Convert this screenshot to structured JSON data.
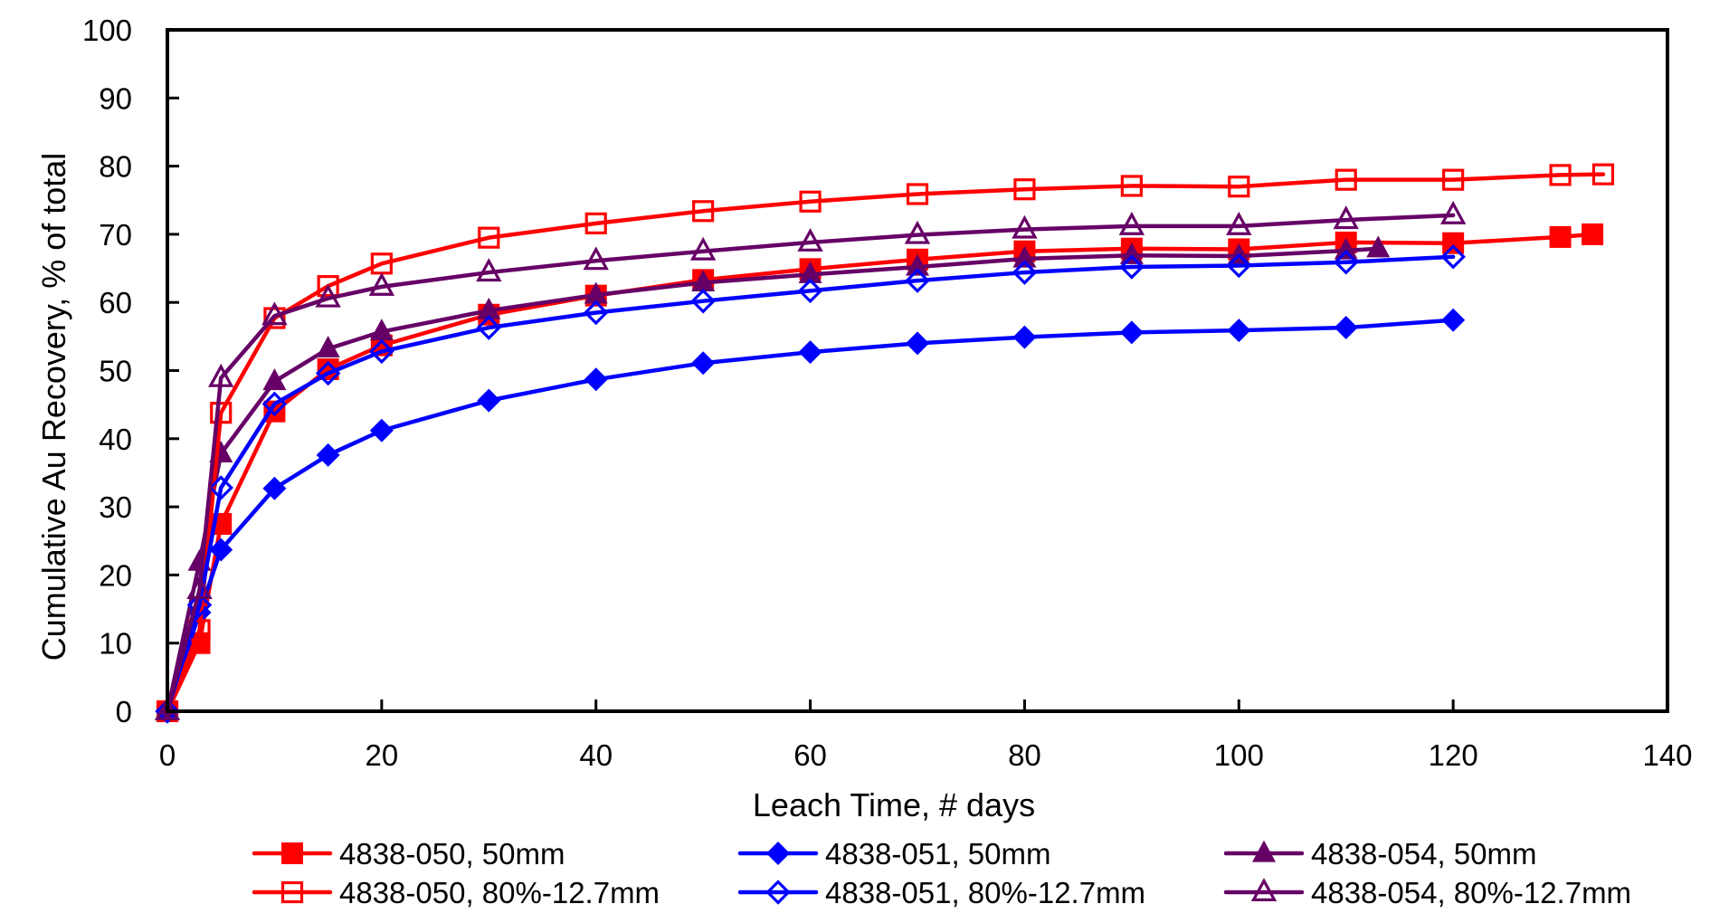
{
  "chart_data": {
    "type": "line",
    "title": "",
    "xlabel": "Leach Time, # days",
    "ylabel": "Cumulative Au Recovery, % of total",
    "xlim": [
      0,
      140
    ],
    "ylim": [
      0,
      100
    ],
    "x_ticks": [
      0,
      20,
      40,
      60,
      80,
      100,
      120,
      140
    ],
    "y_ticks": [
      0,
      10,
      20,
      30,
      40,
      50,
      60,
      70,
      80,
      90,
      100
    ],
    "grid": false,
    "legend_position": "bottom",
    "series": [
      {
        "name": "4838-050, 50mm",
        "color": "#ff0000",
        "marker": "square",
        "filled": true,
        "points": [
          [
            0,
            0
          ],
          [
            3,
            10
          ],
          [
            5,
            27.5
          ],
          [
            10,
            44
          ],
          [
            15,
            50.2
          ],
          [
            20,
            53.7
          ],
          [
            30,
            58.2
          ],
          [
            40,
            61
          ],
          [
            50,
            63.3
          ],
          [
            60,
            64.9
          ],
          [
            70,
            66.3
          ],
          [
            80,
            67.5
          ],
          [
            90,
            67.9
          ],
          [
            100,
            67.8
          ],
          [
            110,
            68.8
          ],
          [
            120,
            68.7
          ],
          [
            130,
            69.6
          ],
          [
            133,
            70
          ]
        ]
      },
      {
        "name": "4838-051, 50mm",
        "color": "#0000ff",
        "marker": "diamond",
        "filled": true,
        "points": [
          [
            0,
            0
          ],
          [
            3,
            14.5
          ],
          [
            5,
            23.7
          ],
          [
            10,
            32.7
          ],
          [
            15,
            37.6
          ],
          [
            20,
            41.2
          ],
          [
            30,
            45.6
          ],
          [
            40,
            48.7
          ],
          [
            50,
            51.1
          ],
          [
            60,
            52.7
          ],
          [
            70,
            54
          ],
          [
            80,
            54.9
          ],
          [
            90,
            55.6
          ],
          [
            100,
            55.9
          ],
          [
            110,
            56.3
          ],
          [
            120,
            57.4
          ]
        ]
      },
      {
        "name": "4838-054, 50mm",
        "color": "#660066",
        "marker": "triangle",
        "filled": true,
        "points": [
          [
            0,
            0
          ],
          [
            3,
            21.9
          ],
          [
            5,
            37.8
          ],
          [
            10,
            48.4
          ],
          [
            15,
            53.2
          ],
          [
            20,
            55.7
          ],
          [
            30,
            58.8
          ],
          [
            40,
            61.1
          ],
          [
            50,
            62.9
          ],
          [
            60,
            64.1
          ],
          [
            70,
            65.2
          ],
          [
            80,
            66.4
          ],
          [
            90,
            66.9
          ],
          [
            100,
            66.8
          ],
          [
            110,
            67.6
          ],
          [
            113,
            67.9
          ]
        ]
      },
      {
        "name": "4838-050, 80%-12.7mm",
        "color": "#ff0000",
        "marker": "square",
        "filled": false,
        "points": [
          [
            0,
            0
          ],
          [
            3,
            11.9
          ],
          [
            5,
            43.8
          ],
          [
            10,
            57.7
          ],
          [
            15,
            62.4
          ],
          [
            20,
            65.7
          ],
          [
            30,
            69.5
          ],
          [
            40,
            71.6
          ],
          [
            50,
            73.4
          ],
          [
            60,
            74.8
          ],
          [
            70,
            75.9
          ],
          [
            80,
            76.6
          ],
          [
            90,
            77.1
          ],
          [
            100,
            77
          ],
          [
            110,
            78
          ],
          [
            120,
            78
          ],
          [
            130,
            78.7
          ],
          [
            134,
            78.8
          ]
        ]
      },
      {
        "name": "4838-051, 80%-12.7mm",
        "color": "#0000ff",
        "marker": "diamond",
        "filled": false,
        "points": [
          [
            0,
            0
          ],
          [
            3,
            15.6
          ],
          [
            5,
            32.8
          ],
          [
            10,
            45.1
          ],
          [
            15,
            49.6
          ],
          [
            20,
            52.8
          ],
          [
            30,
            56.3
          ],
          [
            40,
            58.5
          ],
          [
            50,
            60.2
          ],
          [
            60,
            61.7
          ],
          [
            70,
            63.2
          ],
          [
            80,
            64.4
          ],
          [
            90,
            65.2
          ],
          [
            100,
            65.4
          ],
          [
            110,
            65.9
          ],
          [
            120,
            66.7
          ]
        ]
      },
      {
        "name": "4838-054, 80%-12.7mm",
        "color": "#660066",
        "marker": "triangle",
        "filled": false,
        "points": [
          [
            0,
            0
          ],
          [
            3,
            17.8
          ],
          [
            5,
            48.9
          ],
          [
            10,
            58
          ],
          [
            15,
            60.6
          ],
          [
            20,
            62.3
          ],
          [
            30,
            64.4
          ],
          [
            40,
            66.1
          ],
          [
            50,
            67.5
          ],
          [
            60,
            68.8
          ],
          [
            70,
            69.9
          ],
          [
            80,
            70.7
          ],
          [
            90,
            71.2
          ],
          [
            100,
            71.2
          ],
          [
            110,
            72.1
          ],
          [
            120,
            72.8
          ]
        ]
      }
    ]
  }
}
